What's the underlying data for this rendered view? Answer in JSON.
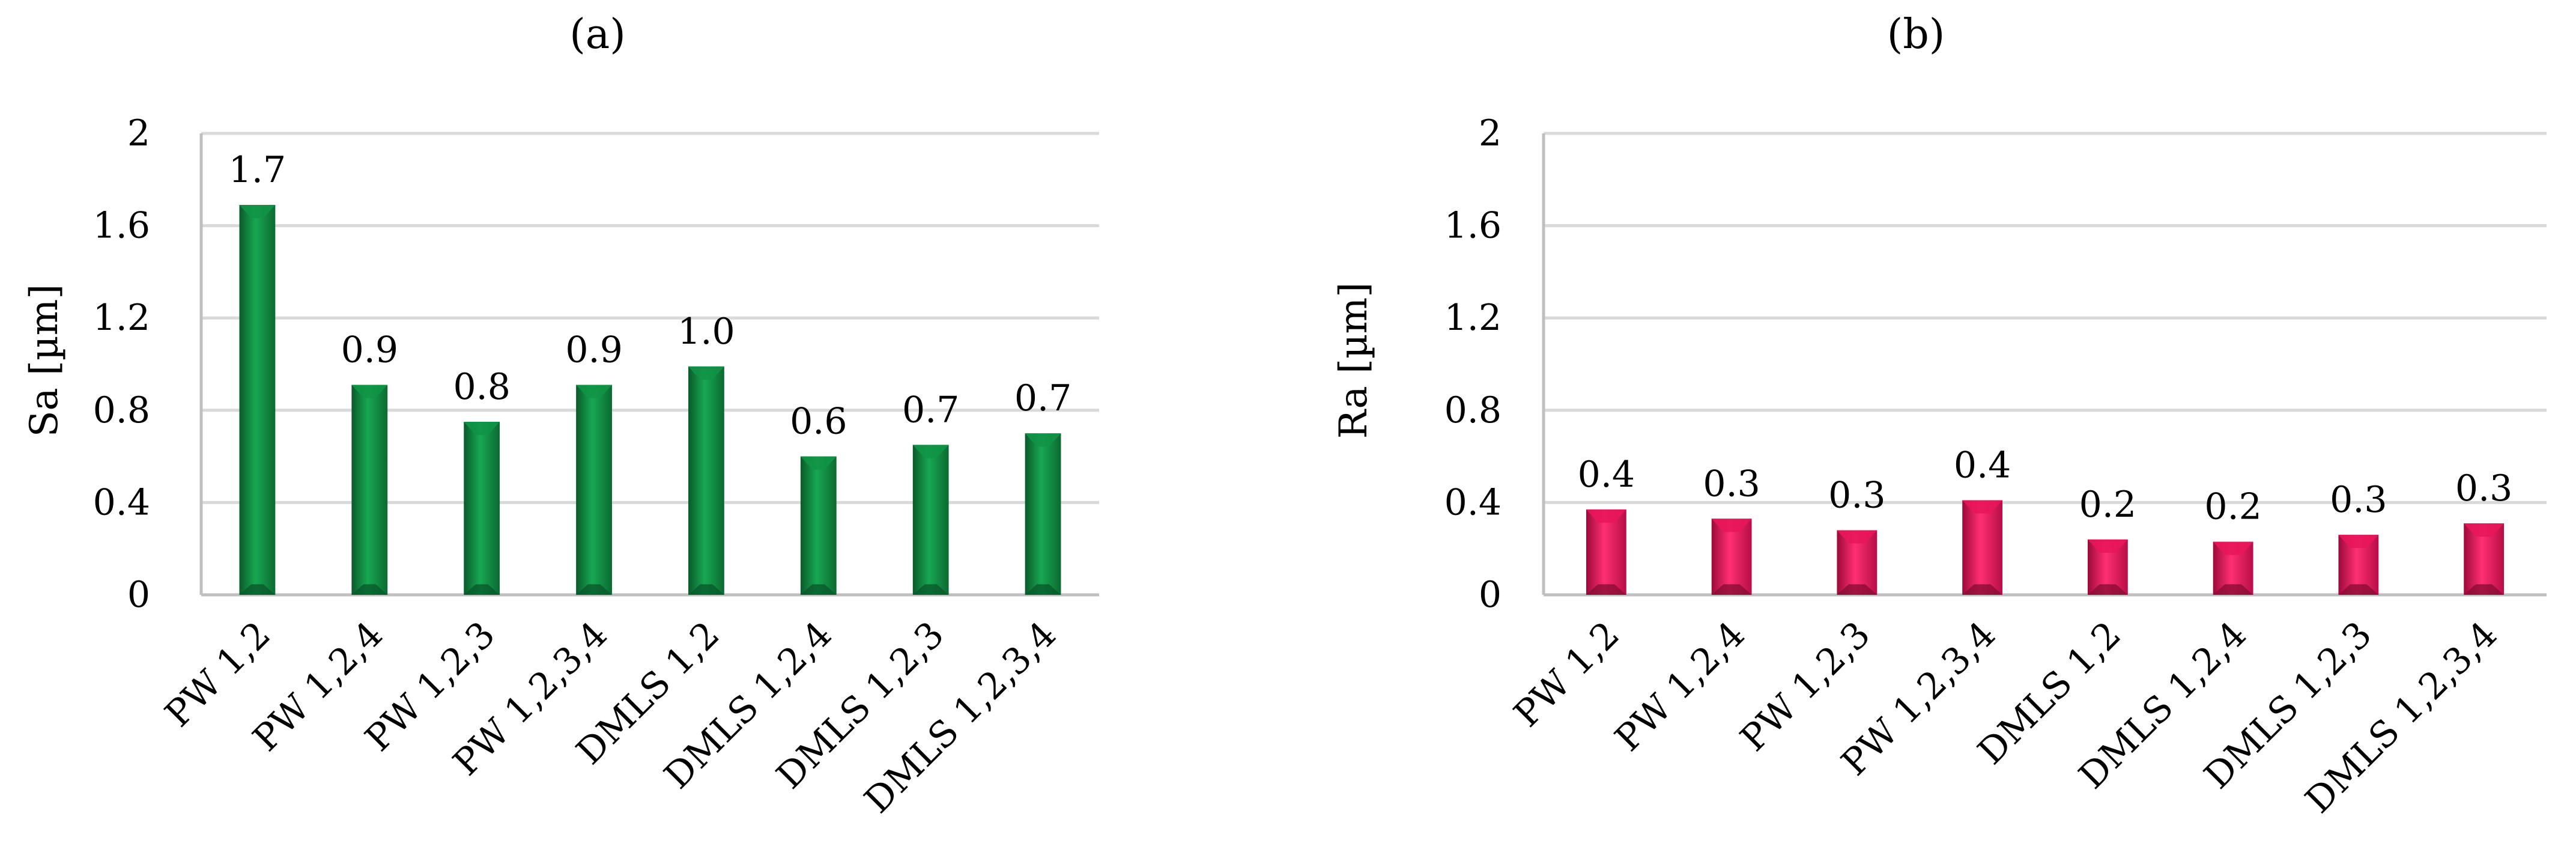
{
  "chart_data": [
    {
      "type": "bar",
      "panel_label": "(a)",
      "ylabel": "Sa [µm]",
      "xlabel": "",
      "categories": [
        "PW 1,2",
        "PW 1,2,4",
        "PW 1,2,3",
        "PW 1,2,3,4",
        "DMLS 1,2",
        "DMLS 1,2,4",
        "DMLS 1,2,3",
        "DMLS 1,2,3,4"
      ],
      "values": [
        1.69,
        0.91,
        0.75,
        0.91,
        0.99,
        0.6,
        0.65,
        0.7
      ],
      "data_labels": [
        "1.7",
        "0.9",
        "0.8",
        "0.9",
        "1.0",
        "0.6",
        "0.7",
        "0.7"
      ],
      "ylim": [
        0,
        2
      ],
      "yticks": [
        "0",
        "0.4",
        "0.8",
        "1.2",
        "1.6",
        "2"
      ],
      "grid": true,
      "legend": "none",
      "color": "#119446"
    },
    {
      "type": "bar",
      "panel_label": "(b)",
      "ylabel": "Ra [µm]",
      "xlabel": "",
      "categories": [
        "PW 1,2",
        "PW 1,2,4",
        "PW 1,2,3",
        "PW 1,2,3,4",
        "DMLS 1,2",
        "DMLS 1,2,4",
        "DMLS 1,2,3",
        "DMLS 1,2,3,4"
      ],
      "values": [
        0.37,
        0.33,
        0.28,
        0.41,
        0.24,
        0.23,
        0.26,
        0.31
      ],
      "data_labels": [
        "0.4",
        "0.3",
        "0.3",
        "0.4",
        "0.2",
        "0.2",
        "0.3",
        "0.3"
      ],
      "ylim": [
        0,
        2
      ],
      "yticks": [
        "0",
        "0.4",
        "0.8",
        "1.2",
        "1.6",
        "2"
      ],
      "grid": true,
      "legend": "none",
      "color": "#e8165a"
    }
  ]
}
